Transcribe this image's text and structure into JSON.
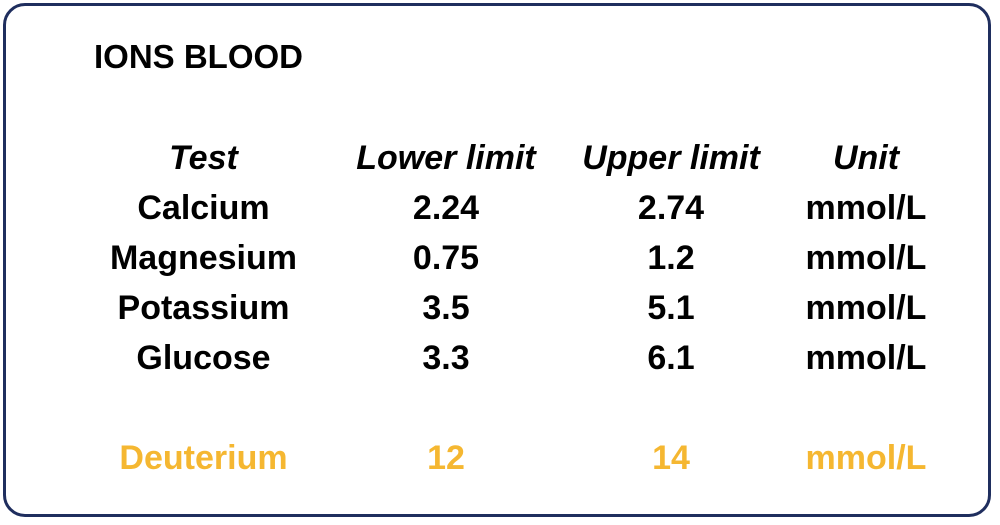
{
  "title": "IONS BLOOD",
  "table": {
    "headers": [
      "Test",
      "Lower limit",
      "Upper limit",
      "Unit"
    ],
    "rows": [
      [
        "Calcium",
        "2.24",
        "2.74",
        "mmol/L"
      ],
      [
        "Magnesium",
        "0.75",
        "1.2",
        "mmol/L"
      ],
      [
        "Potassium",
        "3.5",
        "5.1",
        "mmol/L"
      ],
      [
        "Glucose",
        "3.3",
        "6.1",
        "mmol/L"
      ]
    ],
    "highlight_row": [
      "Deuterium",
      "12",
      "14",
      "mmol/L"
    ]
  },
  "colors": {
    "border": "#1f2e5e",
    "text": "#000000",
    "highlight": "#f5b731"
  }
}
